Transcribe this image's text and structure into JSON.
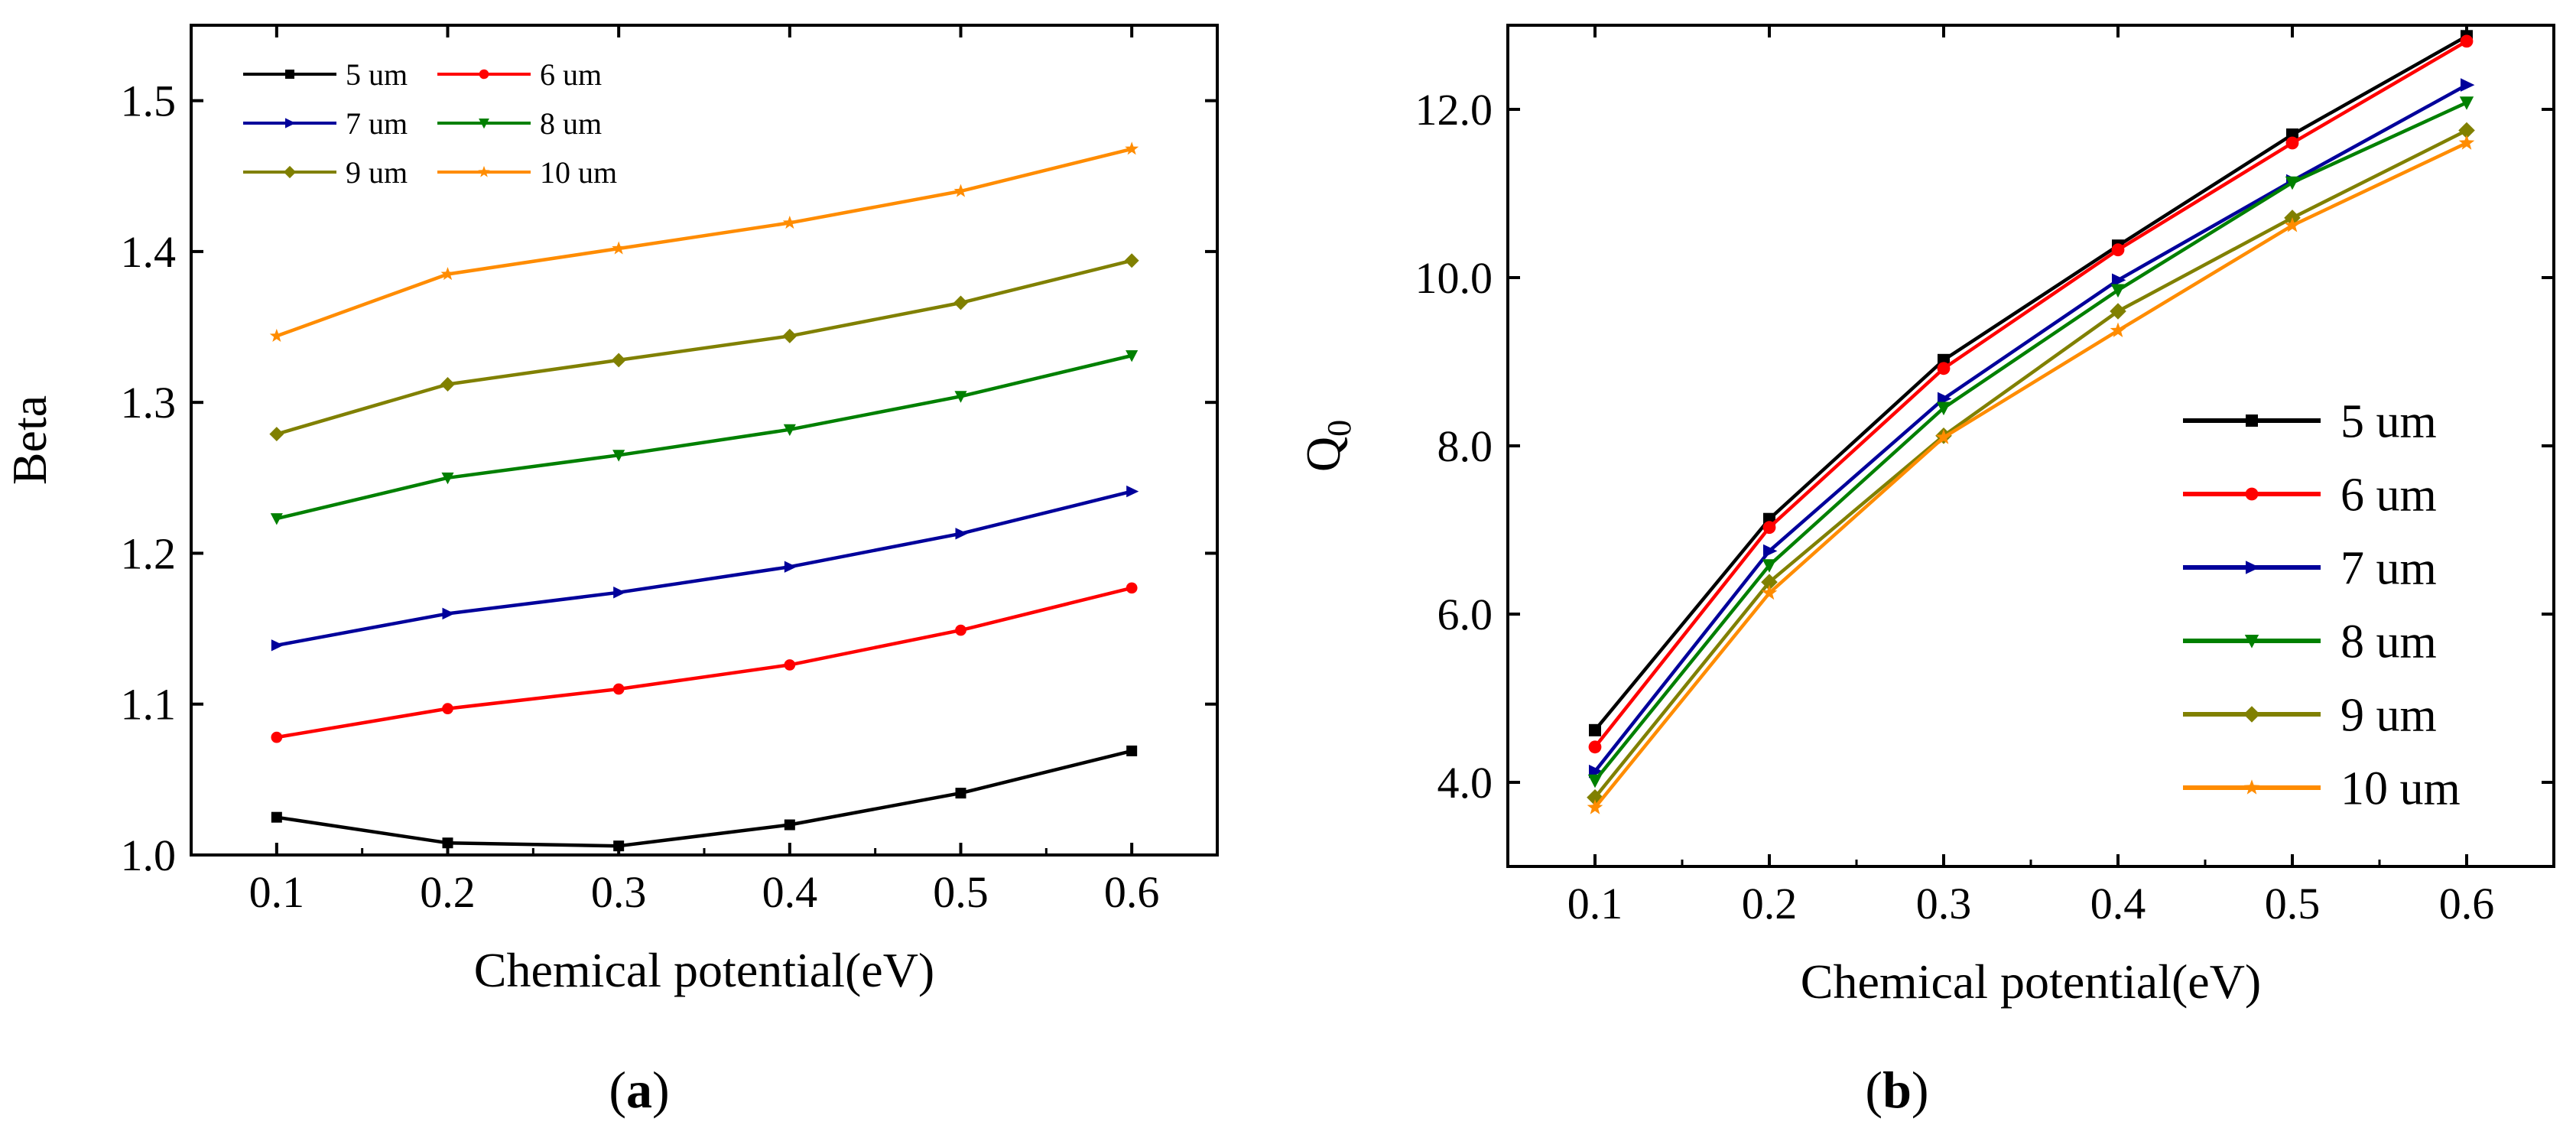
{
  "chart_data": [
    {
      "type": "line",
      "panel_label": "a",
      "title": "",
      "xlabel": "Chemical potential(eV)",
      "ylabel": "Beta",
      "x": [
        0.1,
        0.2,
        0.3,
        0.4,
        0.5,
        0.6
      ],
      "x_tick_labels": [
        "0.1",
        "0.2",
        "0.3",
        "0.4",
        "0.5",
        "0.6"
      ],
      "y_tick_labels": [
        "1.0",
        "1.1",
        "1.2",
        "1.3",
        "1.4",
        "1.5"
      ],
      "xlim": [
        0.05,
        0.65
      ],
      "ylim": [
        1.0,
        1.55
      ],
      "y_ticks": [
        1.0,
        1.1,
        1.2,
        1.3,
        1.4,
        1.5
      ],
      "legend_position": "top-left",
      "legend_columns": 2,
      "series": [
        {
          "name": "5 um",
          "color": "#000000",
          "marker": "square",
          "values": [
            1.025,
            1.008,
            1.006,
            1.02,
            1.041,
            1.069
          ]
        },
        {
          "name": "6 um",
          "color": "#ff0000",
          "marker": "circle",
          "values": [
            1.078,
            1.097,
            1.11,
            1.126,
            1.149,
            1.177
          ]
        },
        {
          "name": "7 um",
          "color": "#00009b",
          "marker": "triangle-right",
          "values": [
            1.139,
            1.16,
            1.174,
            1.191,
            1.213,
            1.241
          ]
        },
        {
          "name": "8 um",
          "color": "#008000",
          "marker": "triangle-down",
          "values": [
            1.223,
            1.25,
            1.265,
            1.282,
            1.304,
            1.331
          ]
        },
        {
          "name": "9 um",
          "color": "#808000",
          "marker": "diamond",
          "values": [
            1.279,
            1.312,
            1.328,
            1.344,
            1.366,
            1.394
          ]
        },
        {
          "name": "10 um",
          "color": "#ff8c00",
          "marker": "star",
          "values": [
            1.344,
            1.385,
            1.402,
            1.419,
            1.44,
            1.468
          ]
        }
      ]
    },
    {
      "type": "line",
      "panel_label": "b",
      "title": "",
      "xlabel": "Chemical potential(eV)",
      "ylabel": "Q",
      "ylabel_subscript": "0",
      "x": [
        0.1,
        0.2,
        0.3,
        0.4,
        0.5,
        0.6
      ],
      "x_tick_labels": [
        "0.1",
        "0.2",
        "0.3",
        "0.4",
        "0.5",
        "0.6"
      ],
      "y_tick_labels": [
        "4.0",
        "6.0",
        "8.0",
        "10.0",
        "12.0"
      ],
      "xlim": [
        0.05,
        0.65
      ],
      "ylim": [
        3.0,
        13.0
      ],
      "y_ticks": [
        4.0,
        6.0,
        8.0,
        10.0,
        12.0
      ],
      "legend_position": "bottom-right",
      "legend_columns": 1,
      "series": [
        {
          "name": "5 um",
          "color": "#000000",
          "marker": "square",
          "values": [
            4.62,
            7.13,
            9.02,
            10.38,
            11.7,
            12.87
          ]
        },
        {
          "name": "6 um",
          "color": "#ff0000",
          "marker": "circle",
          "values": [
            4.42,
            7.03,
            8.92,
            10.33,
            11.6,
            12.81
          ]
        },
        {
          "name": "7 um",
          "color": "#00009b",
          "marker": "triangle-right",
          "values": [
            4.13,
            6.75,
            8.56,
            9.97,
            11.15,
            12.29
          ]
        },
        {
          "name": "8 um",
          "color": "#008000",
          "marker": "triangle-down",
          "values": [
            4.02,
            6.58,
            8.45,
            9.85,
            11.13,
            12.08
          ]
        },
        {
          "name": "9 um",
          "color": "#808000",
          "marker": "diamond",
          "values": [
            3.82,
            6.38,
            8.12,
            9.6,
            10.71,
            11.75
          ]
        },
        {
          "name": "10 um",
          "color": "#ff8c00",
          "marker": "star",
          "values": [
            3.7,
            6.25,
            8.1,
            9.37,
            10.62,
            11.6
          ]
        }
      ]
    }
  ]
}
